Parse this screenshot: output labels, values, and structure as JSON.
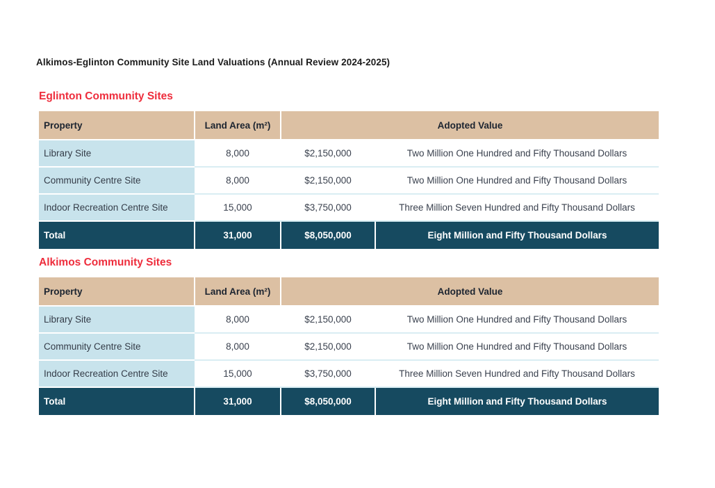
{
  "page": {
    "title": "Alkimos-Eglinton Community Site Land Valuations (Annual Review 2024-2025)"
  },
  "colors": {
    "section_heading_red": "#ee2d3c",
    "table_header_tan": "#dcc0a3",
    "property_column_blue": "#c8e3ec",
    "total_row_teal": "#164a60",
    "row_divider_blue": "#d9edf3",
    "header_text": "#1c2430",
    "body_text": "#3a414e"
  },
  "tables": [
    {
      "section_title": "Eglinton Community Sites",
      "columns": [
        "Property",
        "Land Area (m²)",
        "Adopted Value"
      ],
      "rows": [
        {
          "property": "Library Site",
          "land_area": "8,000",
          "value": "$2,150,000",
          "value_words": "Two Million One Hundred and Fifty Thousand Dollars"
        },
        {
          "property": "Community Centre Site",
          "land_area": "8,000",
          "value": "$2,150,000",
          "value_words": "Two Million One Hundred and Fifty Thousand Dollars"
        },
        {
          "property": "Indoor Recreation Centre Site",
          "land_area": "15,000",
          "value": "$3,750,000",
          "value_words": "Three Million Seven Hundred and Fifty Thousand Dollars"
        }
      ],
      "total": {
        "label": "Total",
        "land_area": "31,000",
        "value": "$8,050,000",
        "value_words": "Eight Million and Fifty Thousand Dollars"
      }
    },
    {
      "section_title": "Alkimos Community Sites",
      "columns": [
        "Property",
        "Land Area (m²)",
        "Adopted Value"
      ],
      "rows": [
        {
          "property": "Library Site",
          "land_area": "8,000",
          "value": "$2,150,000",
          "value_words": "Two Million One Hundred and Fifty Thousand Dollars"
        },
        {
          "property": "Community Centre Site",
          "land_area": "8,000",
          "value": "$2,150,000",
          "value_words": "Two Million One Hundred and Fifty Thousand Dollars"
        },
        {
          "property": "Indoor Recreation Centre Site",
          "land_area": "15,000",
          "value": "$3,750,000",
          "value_words": "Three Million Seven Hundred and Fifty Thousand Dollars"
        }
      ],
      "total": {
        "label": "Total",
        "land_area": "31,000",
        "value": "$8,050,000",
        "value_words": "Eight Million and Fifty Thousand Dollars"
      }
    }
  ]
}
